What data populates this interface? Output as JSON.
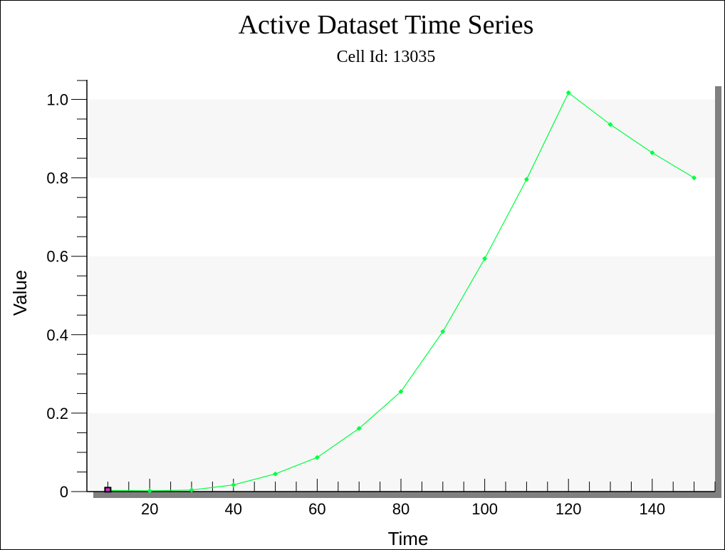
{
  "chart_data": {
    "type": "line",
    "title": "Active Dataset Time Series",
    "subtitle": "Cell Id: 13035",
    "xlabel": "Time",
    "ylabel": "Value",
    "xlim": [
      5,
      155
    ],
    "ylim": [
      0,
      1.05
    ],
    "x_ticks": [
      "20",
      "40",
      "60",
      "80",
      "100",
      "120",
      "140"
    ],
    "y_ticks": [
      "0",
      "0.2",
      "0.4",
      "0.6",
      "0.8",
      "1.0"
    ],
    "band_colors": [
      "#f7f7f7",
      "#ffffff"
    ],
    "grid": false,
    "series": [
      {
        "color": "#00ff40",
        "x": [
          10,
          20,
          30,
          40,
          50,
          60,
          70,
          80,
          90,
          100,
          110,
          120,
          130,
          140,
          150
        ],
        "y": [
          0.003,
          0.002,
          0.004,
          0.017,
          0.045,
          0.087,
          0.161,
          0.255,
          0.408,
          0.594,
          0.796,
          1.017,
          0.936,
          0.864,
          0.8
        ]
      }
    ],
    "first_point_marker_color": "#cc33cc"
  }
}
